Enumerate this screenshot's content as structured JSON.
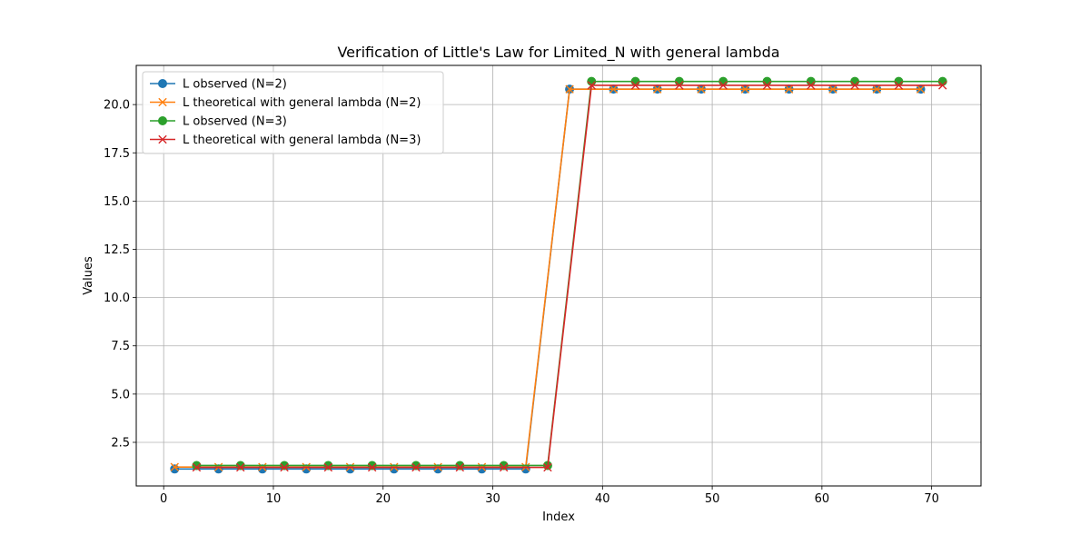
{
  "chart_data": {
    "type": "line",
    "title": "Verification of Little's Law for Limited_N with general lambda",
    "xlabel": "Index",
    "ylabel": "Values",
    "xlim": [
      -2.5,
      74.5
    ],
    "ylim": [
      0.24,
      22.03
    ],
    "xticks": [
      0,
      10,
      20,
      30,
      40,
      50,
      60,
      70
    ],
    "yticks": [
      2.5,
      5.0,
      7.5,
      10.0,
      12.5,
      15.0,
      17.5,
      20.0
    ],
    "grid": true,
    "legend_position": "upper left",
    "series": [
      {
        "name": "L observed (N=2)",
        "color": "#1f77b4",
        "marker": "circle",
        "x": [
          1,
          5,
          9,
          13,
          17,
          21,
          25,
          29,
          33,
          37,
          41,
          45,
          49,
          53,
          57,
          61,
          65,
          69
        ],
        "y": [
          1.12,
          1.12,
          1.12,
          1.12,
          1.12,
          1.12,
          1.12,
          1.12,
          1.12,
          20.8,
          20.8,
          20.8,
          20.8,
          20.8,
          20.8,
          20.8,
          20.8,
          20.8
        ]
      },
      {
        "name": "L theoretical with general lambda (N=2)",
        "color": "#ff7f0e",
        "marker": "x",
        "x": [
          1,
          5,
          9,
          13,
          17,
          21,
          25,
          29,
          33,
          37,
          41,
          45,
          49,
          53,
          57,
          61,
          65,
          69
        ],
        "y": [
          1.22,
          1.22,
          1.22,
          1.22,
          1.22,
          1.22,
          1.22,
          1.22,
          1.22,
          20.8,
          20.8,
          20.8,
          20.8,
          20.8,
          20.8,
          20.8,
          20.8,
          20.8
        ]
      },
      {
        "name": "L observed (N=3)",
        "color": "#2ca02c",
        "marker": "circle",
        "x": [
          3,
          7,
          11,
          15,
          19,
          23,
          27,
          31,
          35,
          39,
          43,
          47,
          51,
          55,
          59,
          63,
          67,
          71
        ],
        "y": [
          1.3,
          1.3,
          1.3,
          1.3,
          1.3,
          1.3,
          1.3,
          1.3,
          1.3,
          21.2,
          21.2,
          21.2,
          21.2,
          21.2,
          21.2,
          21.2,
          21.2,
          21.2
        ]
      },
      {
        "name": "L theoretical with general lambda (N=3)",
        "color": "#d62728",
        "marker": "x",
        "x": [
          3,
          7,
          11,
          15,
          19,
          23,
          27,
          31,
          35,
          39,
          43,
          47,
          51,
          55,
          59,
          63,
          67,
          71
        ],
        "y": [
          1.2,
          1.2,
          1.2,
          1.2,
          1.2,
          1.2,
          1.2,
          1.2,
          1.2,
          21.0,
          21.0,
          21.0,
          21.0,
          21.0,
          21.0,
          21.0,
          21.0,
          21.0
        ]
      }
    ]
  }
}
